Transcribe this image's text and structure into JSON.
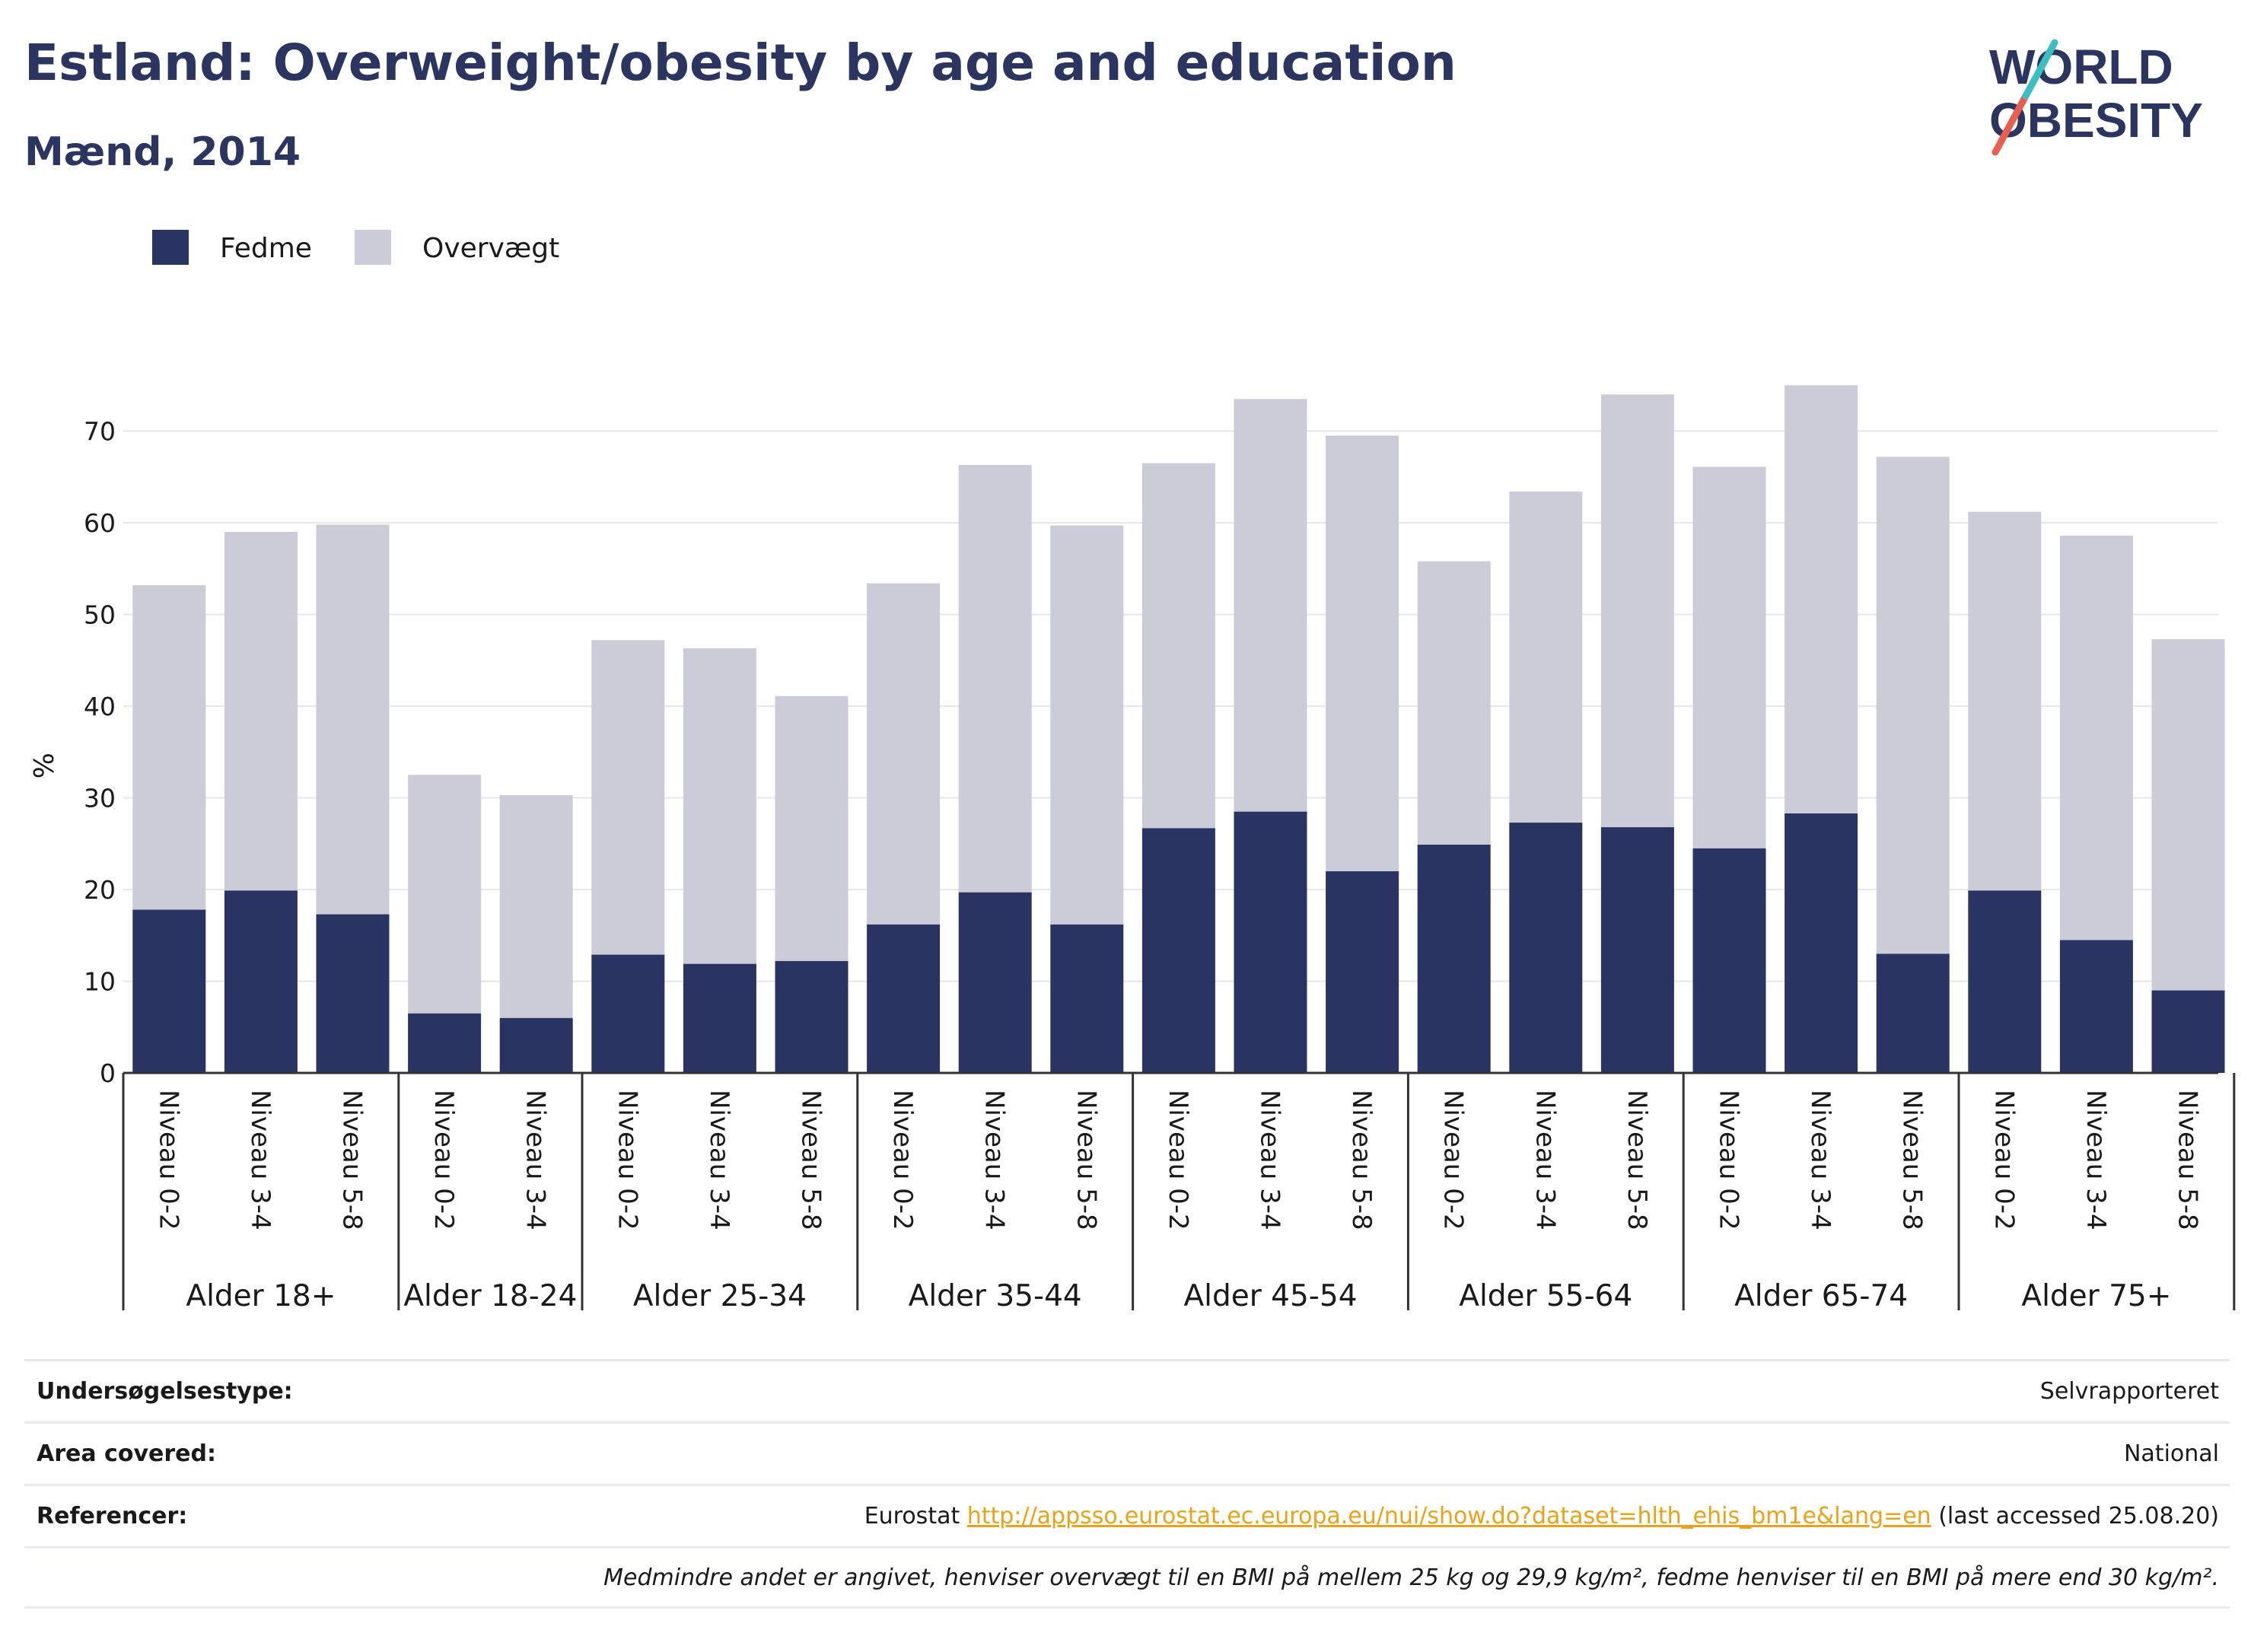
{
  "header": {
    "title": "Estland: Overweight/obesity by age and education",
    "subtitle": "Mænd, 2014"
  },
  "logo": {
    "line1": "WORLD",
    "line2": "OBESITY"
  },
  "colors": {
    "obesity": "#293462",
    "overweight": "#cbccd8",
    "title": "#2b3560",
    "link": "#e8a21b",
    "logo_slash_red": "#e85f50",
    "logo_slash_teal": "#3bbfc0"
  },
  "chart_data": {
    "type": "bar",
    "stacked": true,
    "title": "Estland: Overweight/obesity by age and education",
    "subtitle": "Mænd, 2014",
    "ylabel": "%",
    "ylim": [
      0,
      77
    ],
    "yticks": [
      0,
      10,
      20,
      30,
      40,
      50,
      60,
      70
    ],
    "grid": true,
    "legend_position": "top-left",
    "groups": [
      {
        "label": "Alder 18+",
        "categories": [
          "Niveau 0-2",
          "Niveau 3-4",
          "Niveau 5-8"
        ]
      },
      {
        "label": "Alder 18-24",
        "categories": [
          "Niveau 0-2",
          "Niveau 3-4"
        ]
      },
      {
        "label": "Alder 25-34",
        "categories": [
          "Niveau 0-2",
          "Niveau 3-4",
          "Niveau 5-8"
        ]
      },
      {
        "label": "Alder 35-44",
        "categories": [
          "Niveau 0-2",
          "Niveau 3-4",
          "Niveau 5-8"
        ]
      },
      {
        "label": "Alder 45-54",
        "categories": [
          "Niveau 0-2",
          "Niveau 3-4",
          "Niveau 5-8"
        ]
      },
      {
        "label": "Alder 55-64",
        "categories": [
          "Niveau 0-2",
          "Niveau 3-4",
          "Niveau 5-8"
        ]
      },
      {
        "label": "Alder 65-74",
        "categories": [
          "Niveau 0-2",
          "Niveau 3-4",
          "Niveau 5-8"
        ]
      },
      {
        "label": "Alder 75+",
        "categories": [
          "Niveau 0-2",
          "Niveau 3-4",
          "Niveau 5-8"
        ]
      }
    ],
    "series": [
      {
        "name": "Fedme",
        "color": "#293462",
        "values": [
          17.8,
          19.9,
          17.3,
          6.5,
          6.0,
          12.9,
          11.9,
          12.2,
          16.2,
          19.7,
          16.2,
          26.7,
          28.5,
          22.0,
          24.9,
          27.3,
          26.8,
          24.5,
          28.3,
          13.0,
          19.9,
          14.5,
          9.0
        ]
      },
      {
        "name": "Overvægt",
        "color": "#cbccd8",
        "values": [
          35.4,
          39.1,
          42.5,
          26.0,
          24.3,
          34.3,
          34.4,
          28.9,
          37.2,
          46.6,
          43.5,
          39.8,
          45.0,
          47.5,
          30.9,
          36.1,
          47.2,
          41.6,
          46.7,
          54.2,
          41.3,
          44.1,
          38.3
        ]
      }
    ]
  },
  "meta": {
    "rows": [
      {
        "label": "Undersøgelsestype:",
        "value": "Selvrapporteret"
      },
      {
        "label": "Area covered:",
        "value": "National"
      },
      {
        "label": "Referencer:",
        "value_prefix": "Eurostat ",
        "link": "http://appsso.eurostat.ec.europa.eu/nui/show.do?dataset=hlth_ehis_bm1e&lang=en",
        "value_suffix": " (last accessed 25.08.20)"
      }
    ],
    "note": "Medmindre andet er angivet, henviser overvægt til en BMI på mellem 25 kg og 29,9 kg/m², fedme henviser til en BMI på mere end 30 kg/m²."
  }
}
